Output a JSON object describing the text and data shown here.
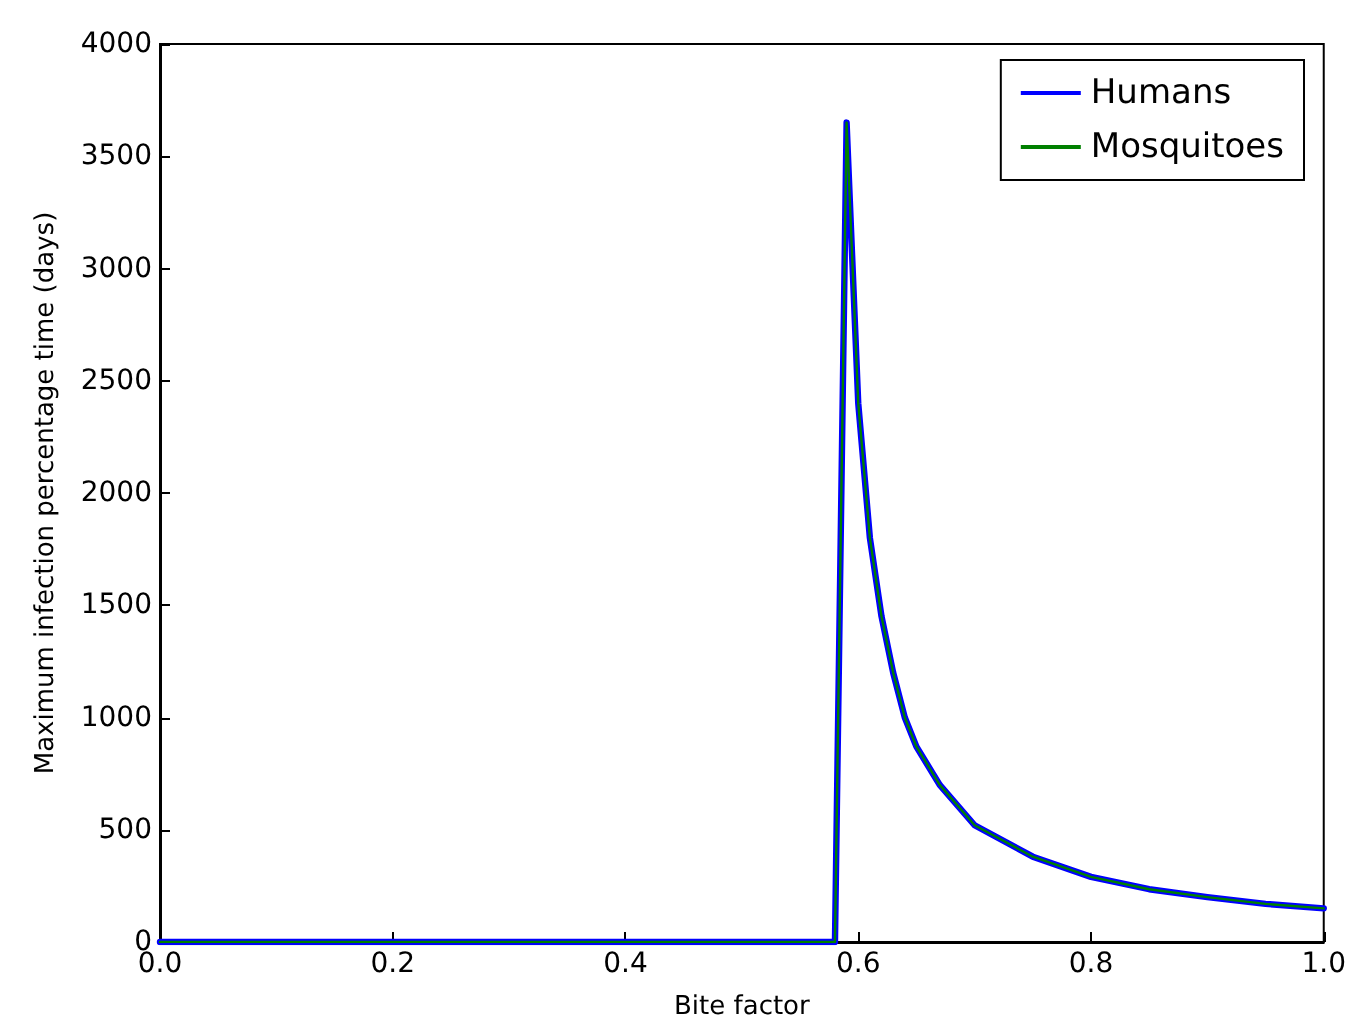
{
  "chart_data": {
    "type": "line",
    "xlabel": "Bite factor",
    "ylabel": "Maximum infection percentage time (days)",
    "x": [
      0,
      0.1,
      0.2,
      0.3,
      0.4,
      0.5,
      0.58,
      0.59,
      0.6,
      0.61,
      0.62,
      0.63,
      0.64,
      0.65,
      0.67,
      0.7,
      0.75,
      0.8,
      0.85,
      0.9,
      0.95,
      1.0
    ],
    "series": [
      {
        "name": "Humans",
        "color": "#0000ff",
        "values": [
          0,
          0,
          0,
          0,
          0,
          0,
          0,
          3650,
          2400,
          1800,
          1450,
          1200,
          1000,
          870,
          700,
          520,
          380,
          290,
          235,
          200,
          170,
          150
        ]
      },
      {
        "name": "Mosquitoes",
        "color": "#008000",
        "values": [
          0,
          0,
          0,
          0,
          0,
          0,
          0,
          3650,
          2400,
          1800,
          1450,
          1200,
          1000,
          870,
          700,
          520,
          380,
          290,
          235,
          200,
          170,
          150
        ]
      }
    ],
    "xlim": [
      0,
      1
    ],
    "xticks": [
      {
        "value": 0,
        "label": "0.0"
      },
      0.2,
      0.4,
      0.6,
      0.8,
      {
        "value": 1,
        "label": "1.0"
      }
    ],
    "ylim": [
      0,
      4000
    ],
    "yticks": [
      0,
      500,
      1000,
      1500,
      2000,
      2500,
      3000,
      3500,
      4000
    ],
    "grid": false,
    "legend": "top right",
    "marker": "none",
    "line_style": "solid"
  }
}
